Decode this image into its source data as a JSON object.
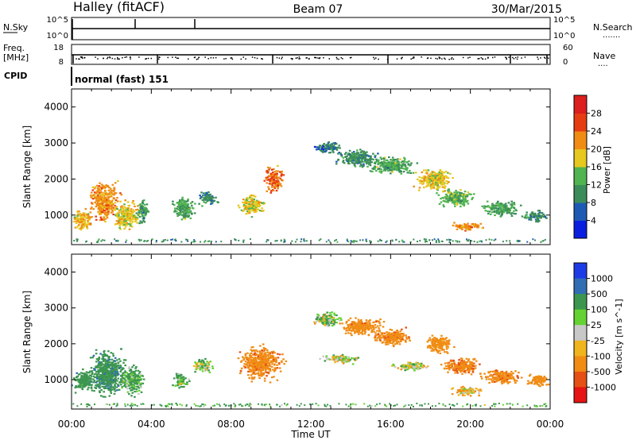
{
  "header": {
    "station": "Halley (fitACF)",
    "beam": "Beam 07",
    "date": "30/Mar/2015"
  },
  "mini_panels": {
    "nsky_label": "N.Sky",
    "nsearch_label": "N.Search",
    "nsky_ticks": [
      "10^5",
      "10^0"
    ],
    "nsearch_ticks": [
      "10^5",
      "10^0"
    ],
    "freq_label": "Freq.",
    "freq_unit": "[MHz]",
    "freq_ticks": [
      "18",
      "8"
    ],
    "nave_label": "Nave",
    "nave_ticks": [
      "60",
      "0"
    ],
    "cpid_label": "CPID",
    "cpid_value": "normal (fast) 151"
  },
  "chart_data": [
    {
      "type": "heatmap",
      "name": "power",
      "ylabel": "Slant Range [km]",
      "xlabel": "",
      "ylim": [
        180,
        4500
      ],
      "yticks": [
        1000,
        2000,
        3000,
        4000
      ],
      "colorbar": {
        "label": "Power [dB]",
        "ticks": [
          "4",
          "8",
          "12",
          "16",
          "20",
          "24",
          "28"
        ],
        "colors": [
          "#0a1ee0",
          "#1e5ab4",
          "#3c8c5a",
          "#50b450",
          "#e6c81e",
          "#f08c14",
          "#e63c14",
          "#dc1e1e"
        ]
      },
      "blobs": [
        {
          "t": 0.5,
          "r": 900,
          "dt": 0.6,
          "dr": 350,
          "v": 20
        },
        {
          "t": 1.6,
          "r": 1400,
          "dt": 0.9,
          "dr": 700,
          "v": 22
        },
        {
          "t": 2.7,
          "r": 1000,
          "dt": 0.8,
          "dr": 500,
          "v": 18
        },
        {
          "t": 3.5,
          "r": 1100,
          "dt": 0.4,
          "dr": 400,
          "v": 12
        },
        {
          "t": 5.6,
          "r": 1200,
          "dt": 0.7,
          "dr": 400,
          "v": 12
        },
        {
          "t": 6.8,
          "r": 1500,
          "dt": 0.6,
          "dr": 250,
          "v": 10
        },
        {
          "t": 9.0,
          "r": 1300,
          "dt": 0.8,
          "dr": 350,
          "v": 18
        },
        {
          "t": 10.1,
          "r": 2000,
          "dt": 0.6,
          "dr": 450,
          "v": 24
        },
        {
          "t": 12.8,
          "r": 2900,
          "dt": 0.9,
          "dr": 200,
          "v": 8
        },
        {
          "t": 14.3,
          "r": 2600,
          "dt": 1.3,
          "dr": 300,
          "v": 10
        },
        {
          "t": 16.0,
          "r": 2400,
          "dt": 1.4,
          "dr": 300,
          "v": 12
        },
        {
          "t": 18.2,
          "r": 2000,
          "dt": 1.1,
          "dr": 400,
          "v": 18
        },
        {
          "t": 19.2,
          "r": 1500,
          "dt": 1.1,
          "dr": 300,
          "v": 14
        },
        {
          "t": 19.8,
          "r": 700,
          "dt": 1.0,
          "dr": 150,
          "v": 22
        },
        {
          "t": 21.5,
          "r": 1200,
          "dt": 1.2,
          "dr": 250,
          "v": 12
        },
        {
          "t": 23.2,
          "r": 1000,
          "dt": 0.7,
          "dr": 200,
          "v": 10
        }
      ]
    },
    {
      "type": "heatmap",
      "name": "velocity",
      "ylabel": "Slant Range [km]",
      "xlabel": "Time UT",
      "ylim": [
        180,
        4500
      ],
      "yticks": [
        1000,
        2000,
        3000,
        4000
      ],
      "xticks": [
        "00:00",
        "04:00",
        "08:00",
        "12:00",
        "16:00",
        "20:00",
        "00:00"
      ],
      "xlim": [
        0,
        24
      ],
      "colorbar": {
        "label": "Velocity [m s^-1]",
        "ticks": [
          "1000",
          "500",
          "100",
          "25",
          "-25",
          "-100",
          "-500",
          "-1000"
        ],
        "colors": [
          "#1e3ce6",
          "#326eb4",
          "#3c9650",
          "#64d232",
          "#c8c8c8",
          "#f0b41e",
          "#f08c14",
          "#e65014",
          "#e61414"
        ]
      },
      "blobs": [
        {
          "t": 0.6,
          "r": 1000,
          "dt": 0.7,
          "dr": 400,
          "v": 300
        },
        {
          "t": 1.8,
          "r": 1200,
          "dt": 1.1,
          "dr": 800,
          "v": 400
        },
        {
          "t": 3.0,
          "r": 1000,
          "dt": 0.8,
          "dr": 500,
          "v": 150
        },
        {
          "t": 5.4,
          "r": 1000,
          "dt": 0.5,
          "dr": 300,
          "v": 120
        },
        {
          "t": 6.5,
          "r": 1400,
          "dt": 0.6,
          "dr": 250,
          "v": 60
        },
        {
          "t": 9.5,
          "r": 1500,
          "dt": 1.3,
          "dr": 600,
          "v": -400
        },
        {
          "t": 12.8,
          "r": 2700,
          "dt": 0.9,
          "dr": 250,
          "v": 60
        },
        {
          "t": 14.5,
          "r": 2500,
          "dt": 1.3,
          "dr": 300,
          "v": -350
        },
        {
          "t": 16.0,
          "r": 2200,
          "dt": 1.2,
          "dr": 300,
          "v": -400
        },
        {
          "t": 13.5,
          "r": 1600,
          "dt": 1.2,
          "dr": 150,
          "v": 0
        },
        {
          "t": 17.0,
          "r": 1400,
          "dt": 1.2,
          "dr": 150,
          "v": 0
        },
        {
          "t": 18.4,
          "r": 2000,
          "dt": 0.8,
          "dr": 350,
          "v": -250
        },
        {
          "t": 19.8,
          "r": 700,
          "dt": 1.0,
          "dr": 150,
          "v": -50
        },
        {
          "t": 19.5,
          "r": 1400,
          "dt": 1.2,
          "dr": 300,
          "v": -450
        },
        {
          "t": 21.5,
          "r": 1100,
          "dt": 1.2,
          "dr": 250,
          "v": -400
        },
        {
          "t": 23.3,
          "r": 1000,
          "dt": 0.7,
          "dr": 200,
          "v": -300
        }
      ]
    }
  ]
}
